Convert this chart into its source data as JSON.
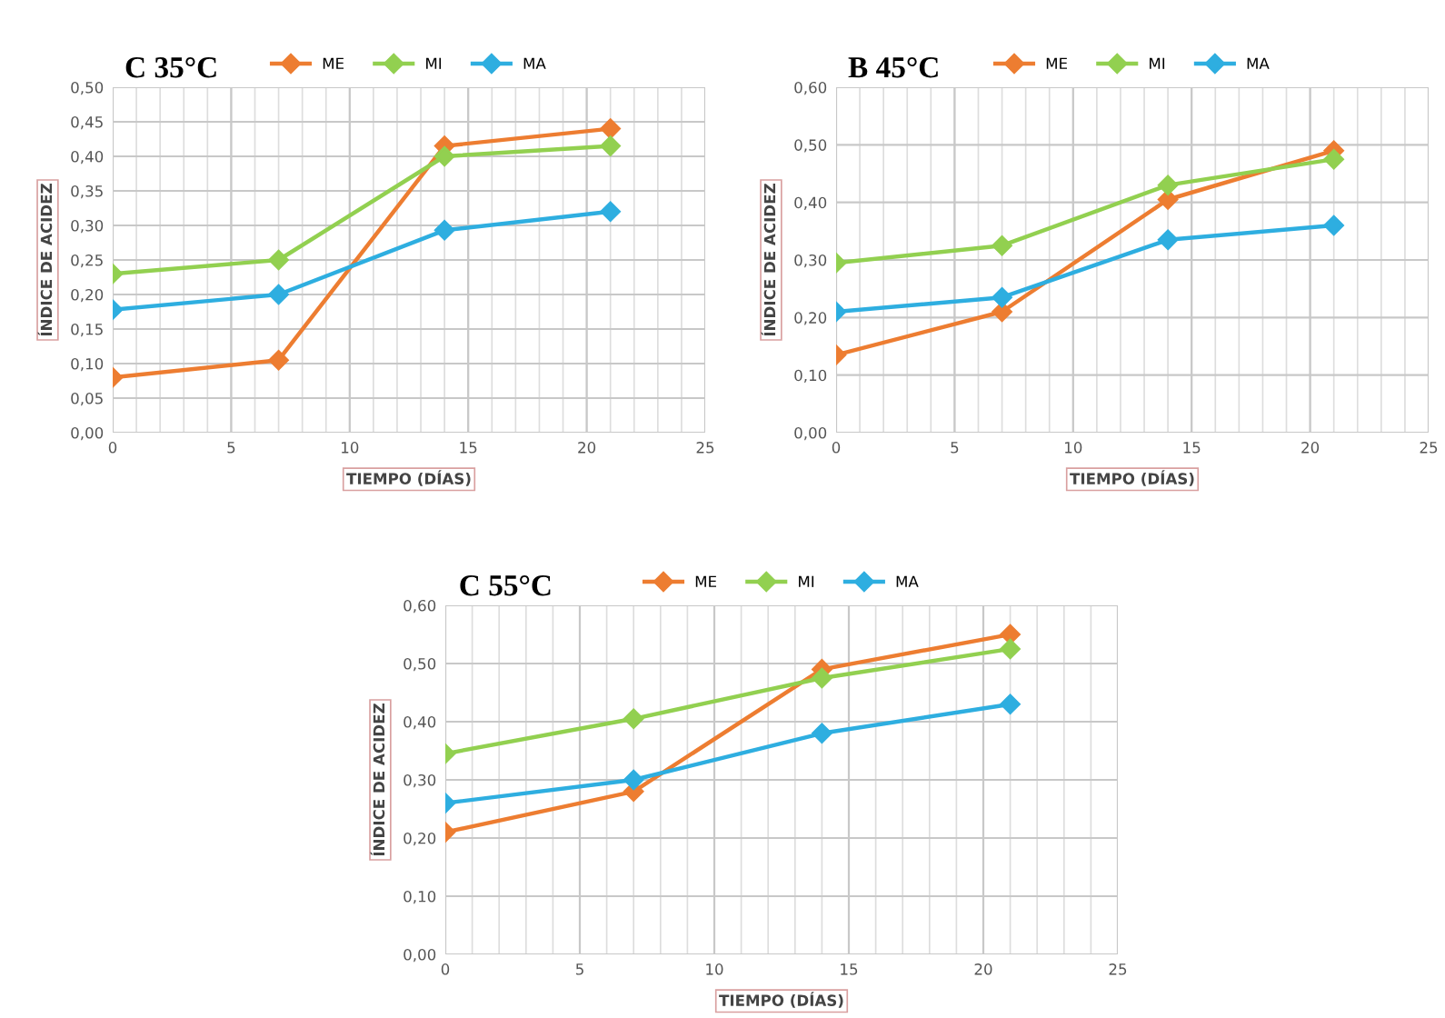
{
  "chart_data": [
    {
      "type": "line",
      "title": "C 35°C",
      "xlabel": "TIEMPO (DÍAS)",
      "ylabel": "ÍNDICE DE ACIDEZ",
      "x": [
        0,
        7,
        14,
        21
      ],
      "series": [
        {
          "name": "ME",
          "color": "#ed7d31",
          "values": [
            0.08,
            0.105,
            0.415,
            0.44
          ]
        },
        {
          "name": "MI",
          "color": "#92d050",
          "values": [
            0.23,
            0.25,
            0.4,
            0.415
          ]
        },
        {
          "name": "MA",
          "color": "#2eaee0",
          "values": [
            0.178,
            0.2,
            0.293,
            0.32
          ]
        }
      ],
      "xlim": [
        0,
        25
      ],
      "xticks": [
        0,
        5,
        10,
        15,
        20,
        25
      ],
      "ylim": [
        0,
        0.5
      ],
      "yticks": [
        {
          "value": 0,
          "label": "0,00"
        },
        {
          "value": 0.05,
          "label": "0,05"
        },
        {
          "value": 0.1,
          "label": "0,10"
        },
        {
          "value": 0.15,
          "label": "0,15"
        },
        {
          "value": 0.2,
          "label": "0,20"
        },
        {
          "value": 0.25,
          "label": "0,25"
        },
        {
          "value": 0.3,
          "label": "0,30"
        },
        {
          "value": 0.35,
          "label": "0,35"
        },
        {
          "value": 0.4,
          "label": "0,40"
        },
        {
          "value": 0.45,
          "label": "0,45"
        },
        {
          "value": 0.5,
          "label": "0,50"
        }
      ],
      "grid": true,
      "legend": "top",
      "marker": "diamond",
      "line_style": "solid"
    },
    {
      "type": "line",
      "title": "B 45°C",
      "xlabel": "TIEMPO (DÍAS)",
      "ylabel": "ÍNDICE DE ACIDEZ",
      "x": [
        0,
        7,
        14,
        21
      ],
      "series": [
        {
          "name": "ME",
          "color": "#ed7d31",
          "values": [
            0.135,
            0.21,
            0.405,
            0.49
          ]
        },
        {
          "name": "MI",
          "color": "#92d050",
          "values": [
            0.295,
            0.325,
            0.43,
            0.475
          ]
        },
        {
          "name": "MA",
          "color": "#2eaee0",
          "values": [
            0.21,
            0.235,
            0.335,
            0.36
          ]
        }
      ],
      "xlim": [
        0,
        25
      ],
      "xticks": [
        0,
        5,
        10,
        15,
        20,
        25
      ],
      "ylim": [
        0,
        0.6
      ],
      "yticks": [
        {
          "value": 0,
          "label": "0,00"
        },
        {
          "value": 0.1,
          "label": "0,10"
        },
        {
          "value": 0.2,
          "label": "0,20"
        },
        {
          "value": 0.3,
          "label": "0,30"
        },
        {
          "value": 0.4,
          "label": "0,40"
        },
        {
          "value": 0.5,
          "label": "0,50"
        },
        {
          "value": 0.6,
          "label": "0,60"
        }
      ],
      "grid": true,
      "legend": "top",
      "marker": "diamond",
      "line_style": "solid"
    },
    {
      "type": "line",
      "title": "C 55°C",
      "xlabel": "TIEMPO (DÍAS)",
      "ylabel": "ÍNDICE DE ACIDEZ",
      "x": [
        0,
        7,
        14,
        21
      ],
      "series": [
        {
          "name": "ME",
          "color": "#ed7d31",
          "values": [
            0.21,
            0.28,
            0.49,
            0.55
          ]
        },
        {
          "name": "MI",
          "color": "#92d050",
          "values": [
            0.345,
            0.405,
            0.475,
            0.525
          ]
        },
        {
          "name": "MA",
          "color": "#2eaee0",
          "values": [
            0.26,
            0.3,
            0.38,
            0.43
          ]
        }
      ],
      "xlim": [
        0,
        25
      ],
      "xticks": [
        0,
        5,
        10,
        15,
        20,
        25
      ],
      "ylim": [
        0,
        0.6
      ],
      "yticks": [
        {
          "value": 0,
          "label": "0,00"
        },
        {
          "value": 0.1,
          "label": "0,10"
        },
        {
          "value": 0.2,
          "label": "0,20"
        },
        {
          "value": 0.3,
          "label": "0,30"
        },
        {
          "value": 0.4,
          "label": "0,40"
        },
        {
          "value": 0.5,
          "label": "0,50"
        },
        {
          "value": 0.6,
          "label": "0,60"
        }
      ],
      "grid": true,
      "legend": "top",
      "marker": "diamond",
      "line_style": "solid"
    }
  ]
}
